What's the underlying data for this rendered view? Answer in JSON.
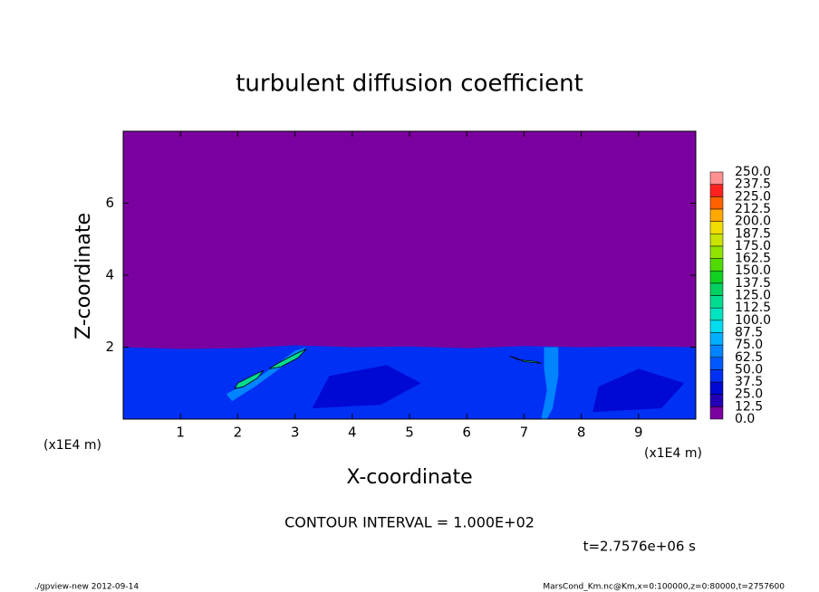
{
  "chart_data": {
    "type": "contour",
    "title": "turbulent diffusion coefficient",
    "xlabel": "X-coordinate",
    "ylabel": "Z-coordinate",
    "xunit": "(x1E4 m)",
    "yunit": "(x1E4 m)",
    "xlim": [
      0,
      10
    ],
    "ylim": [
      0,
      8
    ],
    "xticks": [
      1,
      2,
      3,
      4,
      5,
      6,
      7,
      8,
      9
    ],
    "yticks": [
      2,
      4,
      6
    ],
    "contour_interval": "CONTOUR INTERVAL = 1.000E+02",
    "time": "t=2.7576e+06 s",
    "footer_left": "./gpview-new  2012-09-14",
    "footer_right": "MarsCond_Km.nc@Km,x=0:100000,z=0:80000,t=2757600",
    "colorbar": {
      "levels": [
        {
          "value": 0,
          "label": "0.0"
        },
        12.5,
        {
          "value": 25,
          "label": "25.0"
        },
        37.5,
        {
          "value": 50,
          "label": "50.0"
        },
        62.5,
        {
          "value": 75,
          "label": "75.0"
        },
        87.5,
        {
          "value": 100,
          "label": "100.0"
        },
        112.5,
        {
          "value": 125,
          "label": "125.0"
        },
        137.5,
        {
          "value": 150,
          "label": "150.0"
        },
        162.5,
        {
          "value": 175,
          "label": "175.0"
        },
        187.5,
        {
          "value": 200,
          "label": "200.0"
        },
        212.5,
        {
          "value": 225,
          "label": "225.0"
        },
        237.5,
        {
          "value": 250,
          "label": "250.0"
        }
      ],
      "colors": [
        "#7b00a0",
        "#2400b4",
        "#0008d4",
        "#0030f4",
        "#0058ff",
        "#0084ff",
        "#00b0ff",
        "#00dcf0",
        "#00e4c0",
        "#00dc90",
        "#00d060",
        "#10d020",
        "#50dc00",
        "#90e400",
        "#c8e400",
        "#f0dc00",
        "#ffa800",
        "#ff6000",
        "#ff2020",
        "#ff9090"
      ]
    },
    "regions": [
      {
        "value": 0,
        "points": [
          [
            0,
            0
          ],
          [
            10,
            0
          ],
          [
            10,
            8
          ],
          [
            0,
            8
          ]
        ]
      },
      {
        "value": 37.5,
        "points": [
          [
            0,
            0
          ],
          [
            0,
            2.0
          ],
          [
            1,
            1.95
          ],
          [
            2,
            1.97
          ],
          [
            3,
            2.05
          ],
          [
            4,
            2.0
          ],
          [
            5,
            2.02
          ],
          [
            6,
            1.97
          ],
          [
            7,
            2.03
          ],
          [
            8,
            2.0
          ],
          [
            9,
            2.02
          ],
          [
            10,
            2.0
          ],
          [
            10,
            0
          ]
        ]
      },
      {
        "value": 25,
        "points": [
          [
            3.3,
            0.3
          ],
          [
            4.5,
            0.4
          ],
          [
            5.2,
            1.0
          ],
          [
            4.6,
            1.5
          ],
          [
            3.6,
            1.2
          ]
        ]
      },
      {
        "value": 25,
        "points": [
          [
            8.2,
            0.2
          ],
          [
            9.4,
            0.3
          ],
          [
            9.8,
            1.0
          ],
          [
            9.0,
            1.4
          ],
          [
            8.3,
            0.9
          ]
        ]
      },
      {
        "value": 62.5,
        "points": [
          [
            7.35,
            2.0
          ],
          [
            7.6,
            2.0
          ],
          [
            7.6,
            1.2
          ],
          [
            7.5,
            0.3
          ],
          [
            7.4,
            0
          ],
          [
            7.3,
            0
          ],
          [
            7.4,
            0.8
          ],
          [
            7.35,
            1.4
          ]
        ]
      },
      {
        "value": 62.5,
        "points": [
          [
            1.8,
            0.7
          ],
          [
            2.4,
            1.2
          ],
          [
            3.0,
            1.9
          ],
          [
            3.2,
            2.0
          ],
          [
            2.9,
            1.6
          ],
          [
            2.3,
            0.9
          ],
          [
            1.9,
            0.5
          ]
        ]
      },
      {
        "value": 112.5,
        "points": [
          [
            1.95,
            0.85
          ],
          [
            2.0,
            1.0
          ],
          [
            2.25,
            1.2
          ],
          [
            2.45,
            1.35
          ],
          [
            2.35,
            1.15
          ],
          [
            2.1,
            0.9
          ]
        ]
      },
      {
        "value": 112.5,
        "points": [
          [
            2.55,
            1.4
          ],
          [
            2.7,
            1.55
          ],
          [
            3.0,
            1.8
          ],
          [
            3.2,
            1.95
          ],
          [
            3.05,
            1.7
          ],
          [
            2.75,
            1.45
          ]
        ]
      },
      {
        "value": 112.5,
        "points": [
          [
            6.75,
            1.75
          ],
          [
            6.9,
            1.65
          ],
          [
            7.2,
            1.6
          ],
          [
            7.3,
            1.55
          ],
          [
            7.0,
            1.6
          ],
          [
            6.85,
            1.7
          ]
        ]
      }
    ]
  }
}
